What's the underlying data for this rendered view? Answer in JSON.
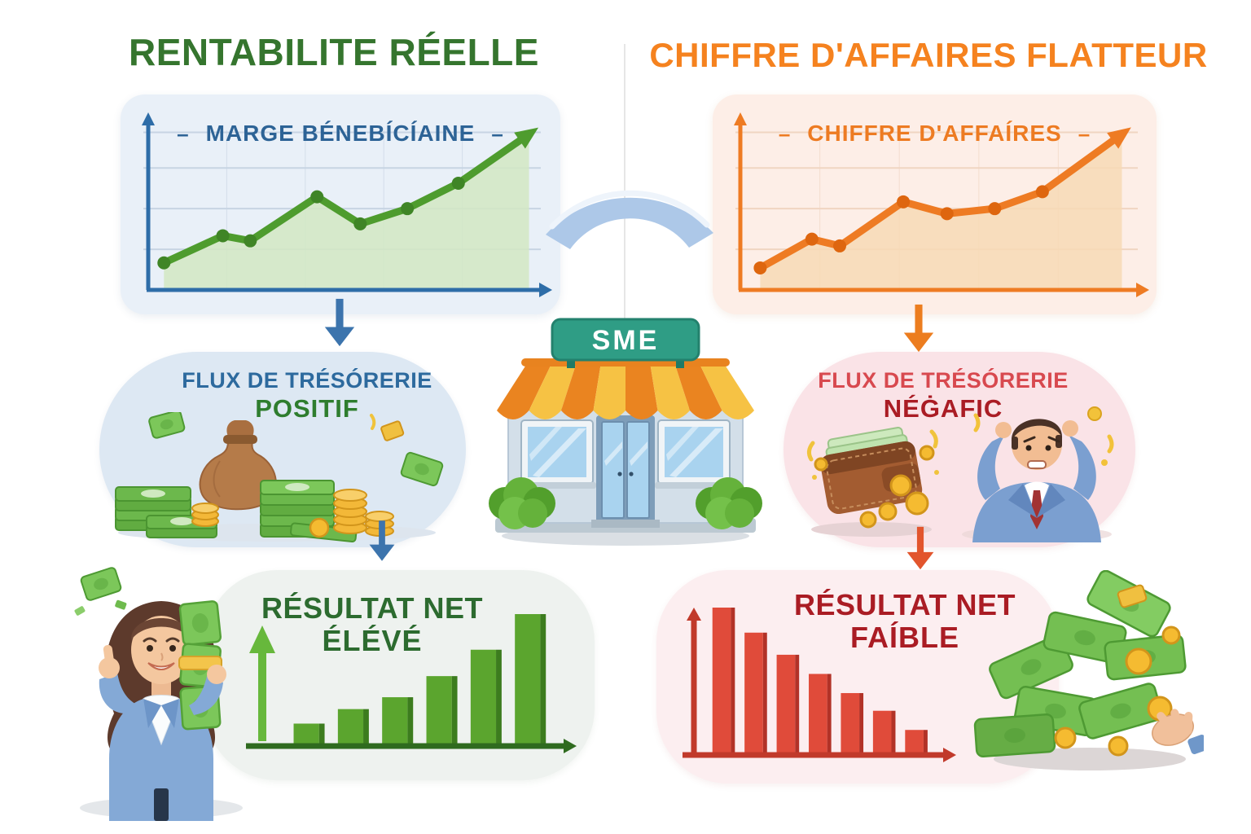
{
  "page": {
    "background": "#ffffff",
    "divider_color": "#e6e6e6"
  },
  "left": {
    "title": "RENTABILITE RÉELLE",
    "chart_label": "MARGE BÉNEBÍCÍAINE",
    "label_dash": "–",
    "cashflow_line1": "FLUX DE TRÉSÓRERIE",
    "cashflow_line2": "POSITIF",
    "result_line1": "RÉSULTAT NET",
    "result_line2": "ÉLÉVÉ"
  },
  "right": {
    "title": "CHIFFRE D'AFFAIRES FLATTEUR",
    "chart_label": "CHIFFRE D'AFFAÍRES",
    "label_dash": "–",
    "cashflow_line1": "FLUX DE TRÉSÓRERIE",
    "cashflow_line2": "NÉĠAFIC",
    "result_line1": "RÉSULTAT NET",
    "result_line2": "FAÍBLE"
  },
  "center": {
    "store_sign": "SME"
  },
  "colors": {
    "green_title": "#35752e",
    "orange_title": "#f5821f",
    "blue_text": "#2d6a9e",
    "green_text": "#2e7d2e",
    "red_text": "#d8494f",
    "dark_red_text": "#aa1c24",
    "dark_green_text": "#2c6b2f",
    "blue_arrow": "#3c74ad",
    "orange_arrow": "#ec7d1f",
    "red_arrow": "#e2552d",
    "panel_blue": "#e9f0f8",
    "panel_peach": "#fdeee7",
    "bubble_blue": "#dde8f3",
    "bubble_pink": "#fae3e7",
    "bubble_gray_green": "#eef2ef",
    "bubble_light_pink": "#fceef0",
    "store_sign_green": "#2f9d85",
    "awning_orange": "#ea8420",
    "awning_yellow": "#f6c244",
    "exchange_arrow_blue": "#adc8e8"
  },
  "chart_data": [
    {
      "id": "marge-line",
      "type": "line",
      "title": "MARGE BÉNEBÍCÍAINE",
      "points": [
        [
          4,
          16
        ],
        [
          19,
          32
        ],
        [
          26,
          29
        ],
        [
          43,
          55
        ],
        [
          54,
          39
        ],
        [
          66,
          48
        ],
        [
          79,
          63
        ]
      ],
      "arrow_end": [
        97,
        92
      ],
      "line_color": "#4e9c2e",
      "dot_color": "#3f8526",
      "fill_color": "#d2e7c3",
      "axis_color": "#2e6da8",
      "grid_color": "#c7d4e3",
      "grid": true,
      "ylim": [
        0,
        100
      ]
    },
    {
      "id": "ca-line",
      "type": "line",
      "title": "CHIFFRE D'AFFAÍRES",
      "points": [
        [
          5,
          13
        ],
        [
          18,
          30
        ],
        [
          25,
          26
        ],
        [
          41,
          52
        ],
        [
          52,
          45
        ],
        [
          64,
          48
        ],
        [
          76,
          58
        ]
      ],
      "arrow_end": [
        96,
        92
      ],
      "line_color": "#ee7b23",
      "dot_color": "#de660f",
      "fill_color": "#f7d9b5",
      "axis_color": "#ee7b23",
      "grid_color": "#f0d5c2",
      "grid": true,
      "ylim": [
        0,
        100
      ]
    },
    {
      "id": "net-high-bars",
      "type": "bar",
      "title": "RÉSULTAT NET ÉLÉVÉ",
      "values": [
        17,
        28,
        37,
        53,
        73,
        100
      ],
      "bar_color": "#5ba52e",
      "bar_shade": "#3c7c1e",
      "axis_color": "#2f6b1f",
      "arrow_color": "#67b83c",
      "up_arrow": true,
      "y_axis": false,
      "ylim": [
        0,
        100
      ]
    },
    {
      "id": "net-low-bars",
      "type": "bar",
      "title": "RÉSULTAT NET FAÍBLE",
      "values": [
        100,
        83,
        68,
        55,
        42,
        30,
        17
      ],
      "bar_color": "#e04b3a",
      "bar_shade": "#b23227",
      "axis_color": "#c13a2b",
      "up_arrow": false,
      "y_axis": true,
      "ylim": [
        0,
        100
      ]
    }
  ]
}
